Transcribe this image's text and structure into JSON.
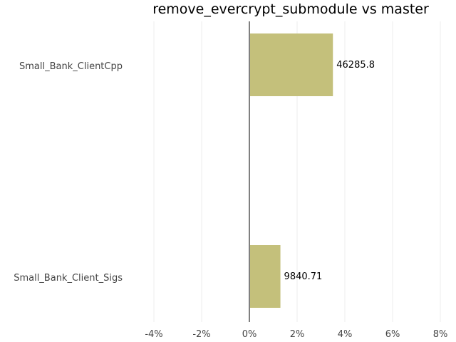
{
  "chart_data": {
    "type": "bar",
    "orientation": "horizontal",
    "title": "remove_evercrypt_submodule vs master",
    "categories": [
      "Small_Bank_ClientCpp",
      "Small_Bank_Client_Sigs"
    ],
    "values": [
      3.5,
      1.3
    ],
    "data_labels": [
      "46285.8",
      "9840.71"
    ],
    "xlim": [
      -4,
      8
    ],
    "xticks": [
      -4,
      -2,
      0,
      2,
      4,
      6,
      8
    ],
    "xtick_labels": [
      "-4%",
      "-2%",
      "0%",
      "2%",
      "4%",
      "6%",
      "8%"
    ],
    "xlabel": "",
    "ylabel": "",
    "grid": "vertical",
    "bar_color": "#c4c07b",
    "zero_line_color": "#808080",
    "grid_color": "#eeeeee"
  }
}
